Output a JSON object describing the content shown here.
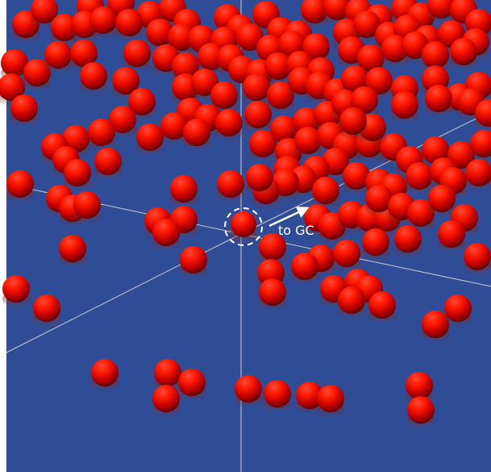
{
  "scene": {
    "background_color": "#2f4d96",
    "sphere_color": "#e00000",
    "axis_color": "#c9c9c9",
    "highlight_ring_color": "#ffffff",
    "arrow_color": "#ffffff",
    "annotation_text": "to GC",
    "sphere_count_visible": 210
  }
}
